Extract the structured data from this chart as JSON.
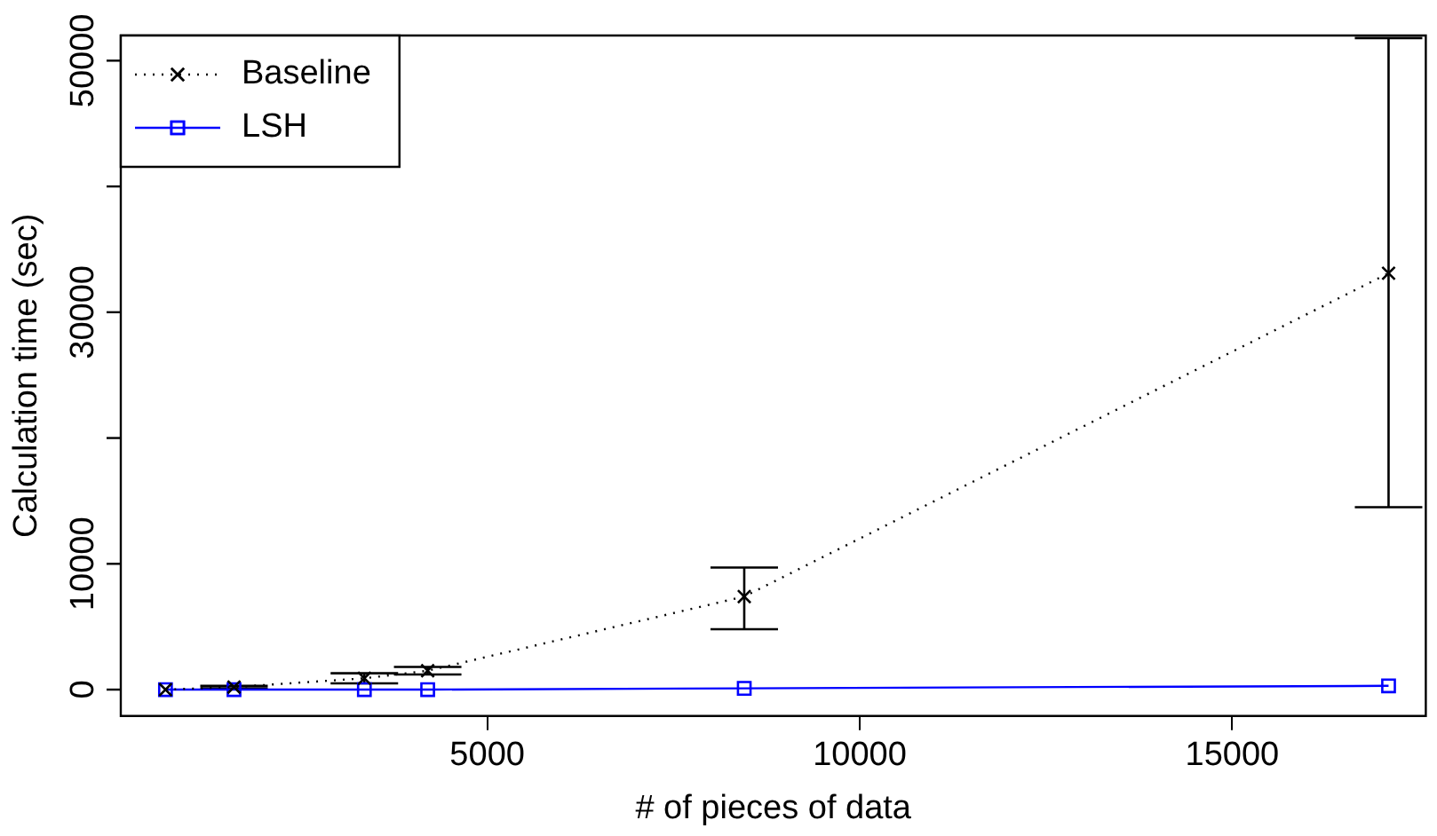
{
  "chart_data": {
    "type": "line",
    "xlabel": "# of pieces of data",
    "ylabel": "Calculation time (sec)",
    "x": [
      680,
      1600,
      3350,
      4200,
      8450,
      17100
    ],
    "series": [
      {
        "name": "Baseline",
        "color": "#000000",
        "marker": "cross",
        "line_style": "dotted",
        "values": [
          0,
          200,
          900,
          1500,
          7400,
          33100
        ],
        "errors": [
          null,
          100,
          400,
          300,
          [
            4800,
            9700
          ],
          [
            14500,
            51800
          ]
        ]
      },
      {
        "name": "LSH",
        "color": "#0000ff",
        "marker": "square",
        "line_style": "solid",
        "values": [
          0,
          0,
          0,
          0,
          100,
          300
        ]
      }
    ],
    "xlim": [
      80,
      17600
    ],
    "xticks": [
      5000,
      10000,
      15000
    ],
    "ylim": [
      -2100,
      52000
    ],
    "yticks": [
      0,
      10000,
      {
        "value": 20000,
        "label": null
      },
      30000,
      {
        "value": 40000,
        "label": null
      },
      50000
    ],
    "legend": "top left",
    "grid": false
  }
}
